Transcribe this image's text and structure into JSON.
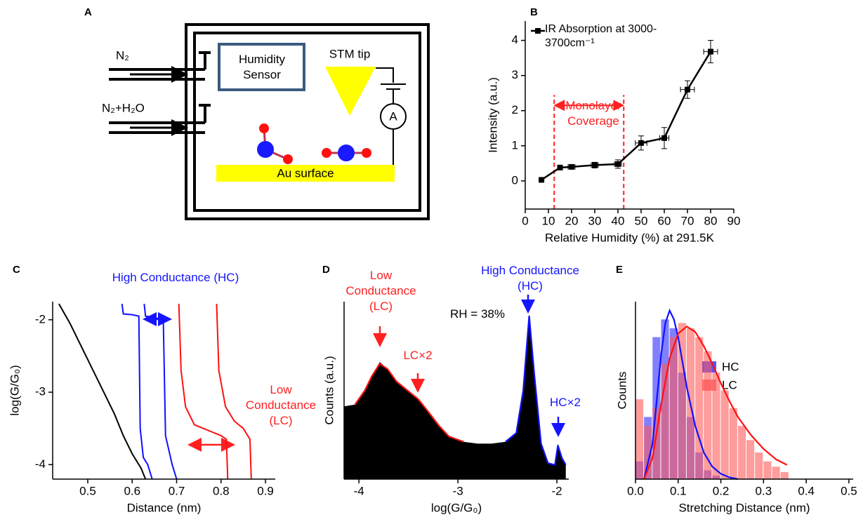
{
  "diagram": {
    "label": "A",
    "inlet_1": "N₂",
    "inlet_2": "N₂+H₂O",
    "sensor": "Humidity Sensor",
    "tip": "STM tip",
    "meter": "A",
    "surface": "Au surface"
  },
  "chart_data": [
    {
      "type": "line",
      "label": "B",
      "xlabel": "Relative Humidity (%) at 291.5K",
      "ylabel": "Intensity (a.u.)",
      "legend": "IR Absorption at 3000-3700cm⁻¹",
      "color": "#000000",
      "x": [
        7,
        15,
        20,
        30,
        40,
        50,
        60,
        70,
        80
      ],
      "values": [
        0.03,
        0.38,
        0.4,
        0.45,
        0.48,
        1.08,
        1.22,
        2.6,
        3.68
      ],
      "y_errors": [
        0,
        0.05,
        0.05,
        0.08,
        0.12,
        0.2,
        0.3,
        0.25,
        0.32
      ],
      "x_errors": [
        0,
        1,
        1.5,
        1.5,
        1.5,
        2.5,
        2,
        3,
        3
      ],
      "annotation": {
        "text": "Monolayer Coverage",
        "x": [
          12.5,
          42.5
        ],
        "color": "#ff2020"
      },
      "xlim": [
        0,
        90
      ],
      "xticks": [
        0,
        10,
        20,
        30,
        40,
        50,
        60,
        70,
        80,
        90
      ],
      "ylim": [
        -0.8,
        4.55
      ],
      "yticks": [
        0,
        1,
        2,
        3,
        4
      ]
    },
    {
      "type": "line",
      "label": "C",
      "xlabel": "Distance (nm)",
      "ylabel": "log(G/G₀)",
      "annotations": [
        "High Conductance (HC)",
        "Low Conductance (LC)"
      ],
      "series": [
        {
          "color": "#000000",
          "x": [
            0.435,
            0.46,
            0.48,
            0.5,
            0.52,
            0.54,
            0.56,
            0.58,
            0.6,
            0.62,
            0.63
          ],
          "values": [
            -1.78,
            -2.05,
            -2.3,
            -2.55,
            -2.8,
            -3.05,
            -3.3,
            -3.6,
            -3.85,
            -4.05,
            -4.2
          ]
        },
        {
          "color": "#1010ff",
          "x": [
            0.577,
            0.58,
            0.6,
            0.615,
            0.618,
            0.625,
            0.635,
            0.645
          ],
          "values": [
            -1.78,
            -1.92,
            -1.93,
            -1.95,
            -3.5,
            -3.9,
            -4.0,
            -4.2
          ]
        },
        {
          "color": "#1010ff",
          "x": [
            0.627,
            0.63,
            0.65,
            0.67,
            0.675,
            0.69,
            0.7
          ],
          "values": [
            -1.78,
            -1.95,
            -1.97,
            -2.0,
            -3.6,
            -4.0,
            -4.2
          ]
        },
        {
          "color": "#ff1010",
          "x": [
            0.705,
            0.71,
            0.72,
            0.74,
            0.76,
            0.78,
            0.8,
            0.812,
            0.815
          ],
          "values": [
            -1.78,
            -2.7,
            -3.2,
            -3.45,
            -3.5,
            -3.55,
            -3.6,
            -3.65,
            -4.2
          ]
        },
        {
          "color": "#ff1010",
          "x": [
            0.79,
            0.795,
            0.81,
            0.83,
            0.85,
            0.865,
            0.868
          ],
          "values": [
            -1.78,
            -2.7,
            -3.2,
            -3.4,
            -3.5,
            -3.65,
            -4.2
          ]
        }
      ],
      "xlim": [
        0.421,
        0.922
      ],
      "xticks": [
        0.5,
        0.6,
        0.7,
        0.8,
        0.9
      ],
      "ylim": [
        -4.2,
        -1.75
      ],
      "yticks": [
        -4,
        -3,
        -2
      ]
    },
    {
      "type": "area",
      "label": "D",
      "xlabel": "log(G/G₀)",
      "ylabel": "Counts (a.u.)",
      "color": "#000000",
      "annotations": [
        "Low Conductance (LC)",
        "LC×2",
        "High Conductance (HC)",
        "RH = 38%",
        "HC×2"
      ],
      "x": [
        -4.15,
        -4.04,
        -3.94,
        -3.87,
        -3.79,
        -3.71,
        -3.62,
        -3.51,
        -3.4,
        -3.3,
        -3.19,
        -3.09,
        -2.94,
        -2.8,
        -2.66,
        -2.52,
        -2.41,
        -2.34,
        -2.28,
        -2.23,
        -2.16,
        -2.09,
        -2.02,
        -1.99,
        -1.95,
        -1.91
      ],
      "values": [
        0.41,
        0.42,
        0.5,
        0.58,
        0.66,
        0.62,
        0.55,
        0.5,
        0.45,
        0.38,
        0.3,
        0.24,
        0.21,
        0.2,
        0.2,
        0.21,
        0.26,
        0.5,
        0.93,
        0.6,
        0.2,
        0.09,
        0.08,
        0.2,
        0.12,
        0.08
      ],
      "fits": [
        {
          "color": "#ff1010",
          "x": [
            -4.04,
            -3.94,
            -3.87,
            -3.79,
            -3.71,
            -3.62,
            -3.51,
            -3.4,
            -3.3,
            -3.19,
            -3.09,
            -2.94
          ],
          "values": [
            0.42,
            0.5,
            0.58,
            0.65,
            0.62,
            0.55,
            0.5,
            0.45,
            0.38,
            0.3,
            0.24,
            0.21
          ]
        },
        {
          "color": "#1010ff",
          "x": [
            -2.52,
            -2.41,
            -2.34,
            -2.28,
            -2.23,
            -2.16,
            -2.09,
            -2.02,
            -1.99,
            -1.95,
            -1.91
          ],
          "values": [
            0.21,
            0.26,
            0.5,
            0.92,
            0.6,
            0.2,
            0.09,
            0.08,
            0.19,
            0.12,
            0.08
          ]
        }
      ],
      "xlim": [
        -4.15,
        -1.88
      ],
      "xticks": [
        -4,
        -3,
        -2
      ],
      "ylim": [
        0,
        1
      ]
    },
    {
      "type": "histogram",
      "label": "E",
      "xlabel": "Stretching Distance (nm)",
      "ylabel": "Counts",
      "bins": [
        0,
        0.02,
        0.04,
        0.06,
        0.08,
        0.1,
        0.12,
        0.14,
        0.16,
        0.18,
        0.2,
        0.22,
        0.24,
        0.26,
        0.28,
        0.3,
        0.32,
        0.34,
        0.36
      ],
      "series": [
        {
          "name": "HC",
          "color": "#2b2bff",
          "values": [
            0.1,
            0.35,
            0.8,
            0.9,
            0.85,
            0.6,
            0.35,
            0.15,
            0.05,
            0.02,
            0,
            0,
            0,
            0,
            0,
            0,
            0,
            0
          ]
        },
        {
          "name": "LC",
          "color": "#ff5a5a",
          "values": [
            0.45,
            0.3,
            0.4,
            0.65,
            0.8,
            0.88,
            0.85,
            0.8,
            0.72,
            0.6,
            0.5,
            0.4,
            0.3,
            0.22,
            0.15,
            0.1,
            0.07,
            0.04
          ]
        }
      ],
      "fits": [
        {
          "color": "#1010ff",
          "x": [
            0.02,
            0.04,
            0.06,
            0.07,
            0.08,
            0.09,
            0.1,
            0.12,
            0.14,
            0.16,
            0.18,
            0.2,
            0.22,
            0.24
          ],
          "values": [
            0,
            0.2,
            0.7,
            0.88,
            0.95,
            0.9,
            0.8,
            0.52,
            0.3,
            0.15,
            0.07,
            0.03,
            0.01,
            0
          ]
        },
        {
          "color": "#ff1010",
          "x": [
            0.02,
            0.04,
            0.06,
            0.08,
            0.1,
            0.12,
            0.14,
            0.16,
            0.18,
            0.2,
            0.22,
            0.24,
            0.27,
            0.3,
            0.33,
            0.355
          ],
          "values": [
            0,
            0.12,
            0.42,
            0.68,
            0.82,
            0.86,
            0.83,
            0.75,
            0.65,
            0.54,
            0.44,
            0.35,
            0.25,
            0.17,
            0.11,
            0.08
          ]
        }
      ],
      "xlim": [
        0,
        0.51
      ],
      "xticks": [
        {
          "value": 0,
          "label": "0.0"
        },
        0.1,
        0.2,
        0.3,
        0.4,
        0.5
      ],
      "ylim": [
        0,
        1
      ]
    }
  ]
}
